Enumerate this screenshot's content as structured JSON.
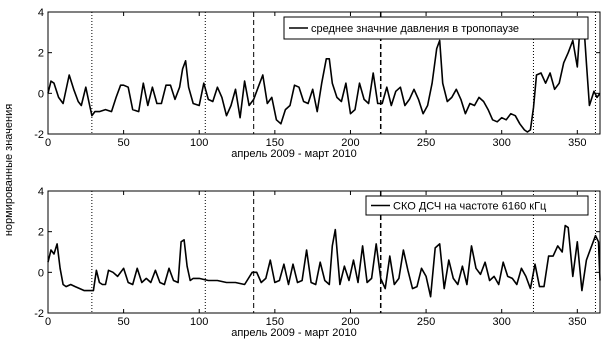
{
  "figure": {
    "ylabel": "нормированные значения"
  },
  "chart_data": [
    {
      "type": "line",
      "xlabel": "апрель 2009 - март 2010",
      "xlim": [
        0,
        365
      ],
      "ylim": [
        -2,
        4
      ],
      "xticks": [
        "0",
        "50",
        "100",
        "150",
        "200",
        "250",
        "300",
        "350"
      ],
      "yticks": [
        "-2",
        "0",
        "2",
        "4"
      ],
      "legend": "top-right",
      "series": [
        {
          "name": "среднее значние  давления  в тропопаузе",
          "color": "#000000",
          "x": [
            0,
            2,
            4,
            7,
            10,
            14,
            17,
            20,
            22,
            25,
            27,
            29,
            31,
            34,
            38,
            42,
            45,
            48,
            50,
            53,
            56,
            60,
            63,
            66,
            69,
            72,
            75,
            78,
            81,
            84,
            87,
            89,
            91,
            93,
            96,
            100,
            103,
            106,
            109,
            112,
            115,
            118,
            121,
            124,
            127,
            130,
            133,
            136,
            139,
            142,
            145,
            148,
            151,
            154,
            157,
            160,
            163,
            166,
            169,
            172,
            175,
            178,
            181,
            184,
            186,
            188,
            191,
            194,
            197,
            200,
            203,
            206,
            209,
            212,
            215,
            218,
            221,
            224,
            227,
            230,
            233,
            236,
            239,
            242,
            245,
            248,
            251,
            254,
            257,
            259,
            261,
            264,
            267,
            270,
            273,
            276,
            279,
            282,
            285,
            288,
            291,
            294,
            297,
            300,
            303,
            306,
            309,
            312,
            315,
            317,
            319,
            321,
            323,
            326,
            329,
            332,
            335,
            338,
            341,
            344,
            347,
            350,
            352,
            354,
            356,
            358,
            361,
            363,
            365
          ],
          "y": [
            0,
            0.6,
            0.5,
            -0.2,
            -0.5,
            0.9,
            0.2,
            -0.4,
            -0.6,
            0.3,
            -0.4,
            -1.1,
            -0.9,
            -0.9,
            -0.8,
            -0.9,
            -0.2,
            0.4,
            0.4,
            0.3,
            -0.8,
            -0.9,
            0.5,
            -0.6,
            0.3,
            -0.5,
            -0.5,
            0.4,
            0.4,
            -0.3,
            0.3,
            1.2,
            1.6,
            0.3,
            -0.5,
            -0.6,
            0.5,
            -0.3,
            -0.4,
            0.3,
            -0.2,
            -1.1,
            -0.6,
            0.2,
            -1.2,
            0.6,
            -0.6,
            -0.3,
            0.3,
            0.9,
            -0.5,
            -0.2,
            -1.3,
            -1.5,
            -0.8,
            -0.6,
            0.4,
            0.3,
            -0.4,
            -0.5,
            0.2,
            -0.9,
            0.5,
            1.7,
            1.7,
            0.5,
            -0.2,
            -0.4,
            0.5,
            -1.0,
            -0.8,
            0.5,
            -0.3,
            -0.5,
            1.0,
            -0.5,
            -0.5,
            0.3,
            -0.6,
            0.1,
            0.3,
            -0.6,
            -0.3,
            0.2,
            -0.3,
            -1.0,
            -0.6,
            0.5,
            2.2,
            2.6,
            0.5,
            -0.4,
            -0.2,
            0.2,
            -0.3,
            -1.0,
            -0.5,
            -0.6,
            -0.2,
            -0.4,
            -0.8,
            -1.3,
            -1.4,
            -1.2,
            -1.3,
            -1.0,
            -1.1,
            -1.5,
            -1.8,
            -1.9,
            -1.8,
            -0.7,
            0.9,
            1.0,
            0.5,
            1.0,
            0.2,
            0.5,
            1.5,
            2.0,
            2.6,
            1.3,
            3.5,
            3.7,
            1.5,
            -0.6,
            0.1,
            -0.2,
            0
          ]
        }
      ],
      "vlines": [
        {
          "x": 29,
          "style": "dotted"
        },
        {
          "x": 104,
          "style": "dotted"
        },
        {
          "x": 136,
          "style": "dashed"
        },
        {
          "x": 220,
          "style": "dashed-bold"
        },
        {
          "x": 321,
          "style": "dotted"
        },
        {
          "x": 362,
          "style": "dotted"
        }
      ]
    },
    {
      "type": "line",
      "xlabel": "апрель 2009 - март 2010",
      "xlim": [
        0,
        365
      ],
      "ylim": [
        -2,
        4
      ],
      "xticks": [
        "0",
        "50",
        "100",
        "150",
        "200",
        "250",
        "300",
        "350"
      ],
      "yticks": [
        "-2",
        "0",
        "2",
        "4"
      ],
      "legend": "top-right",
      "series": [
        {
          "name": "СКО ДСЧ на частоте 6160 кГц",
          "color": "#000000",
          "x": [
            0,
            2,
            4,
            6,
            8,
            10,
            12,
            15,
            18,
            21,
            24,
            27,
            30,
            32,
            34,
            36,
            38,
            40,
            43,
            46,
            50,
            53,
            56,
            59,
            62,
            65,
            68,
            71,
            74,
            77,
            80,
            83,
            86,
            88,
            90,
            92,
            94,
            96,
            100,
            106,
            112,
            118,
            124,
            130,
            135,
            138,
            141,
            144,
            147,
            150,
            153,
            156,
            159,
            162,
            165,
            168,
            171,
            174,
            177,
            180,
            183,
            186,
            188,
            190,
            193,
            196,
            199,
            202,
            205,
            208,
            211,
            214,
            217,
            220,
            223,
            226,
            229,
            232,
            235,
            238,
            241,
            244,
            247,
            250,
            253,
            256,
            259,
            262,
            265,
            268,
            271,
            274,
            277,
            280,
            283,
            286,
            289,
            292,
            295,
            298,
            301,
            304,
            307,
            310,
            313,
            316,
            319,
            322,
            325,
            328,
            331,
            334,
            337,
            340,
            342,
            344,
            347,
            350,
            353,
            356,
            359,
            362,
            364,
            365
          ],
          "y": [
            0.5,
            1.1,
            0.9,
            1.4,
            0.2,
            -0.6,
            -0.7,
            -0.6,
            -0.7,
            -0.8,
            -0.9,
            -0.9,
            -0.9,
            0.1,
            -0.5,
            -0.6,
            -0.6,
            0.1,
            0,
            -0.2,
            0.2,
            -0.5,
            -0.6,
            0.2,
            -0.5,
            -0.3,
            -0.5,
            0.1,
            -0.5,
            -0.6,
            0.2,
            -0.4,
            -0.5,
            1.5,
            1.6,
            0.3,
            -0.4,
            -0.3,
            -0.3,
            -0.4,
            -0.4,
            -0.5,
            -0.5,
            -0.6,
            0,
            0,
            -0.5,
            -0.3,
            0.6,
            -0.5,
            -0.4,
            0.4,
            -0.6,
            0.4,
            -0.5,
            -0.4,
            1.1,
            -0.5,
            -0.6,
            0.5,
            -0.4,
            -0.6,
            1.3,
            2.1,
            -0.6,
            0.3,
            -0.4,
            0.6,
            -0.5,
            1.3,
            -0.5,
            -0.3,
            1.4,
            -0.3,
            -0.8,
            0.8,
            -0.6,
            -0.3,
            1.1,
            0.1,
            -0.8,
            -0.7,
            0.2,
            -0.2,
            -1.2,
            1.2,
            1.4,
            -0.8,
            0.6,
            -0.3,
            -0.6,
            0.3,
            -0.6,
            1.3,
            0.2,
            -0.1,
            0.5,
            -0.4,
            -0.2,
            -0.6,
            0.5,
            -0.2,
            -0.3,
            -0.6,
            0.2,
            -0.2,
            -0.8,
            0.4,
            -0.7,
            -0.7,
            0.8,
            0.8,
            1.3,
            1.0,
            2.3,
            2.2,
            -0.2,
            1.5,
            -0.9,
            0.6,
            1.2,
            1.8,
            1.5,
            -0.4
          ]
        }
      ],
      "vlines": [
        {
          "x": 29,
          "style": "dotted"
        },
        {
          "x": 104,
          "style": "dotted"
        },
        {
          "x": 136,
          "style": "dashed"
        },
        {
          "x": 220,
          "style": "dashed-bold"
        },
        {
          "x": 321,
          "style": "dotted"
        },
        {
          "x": 362,
          "style": "dotted"
        }
      ]
    }
  ]
}
